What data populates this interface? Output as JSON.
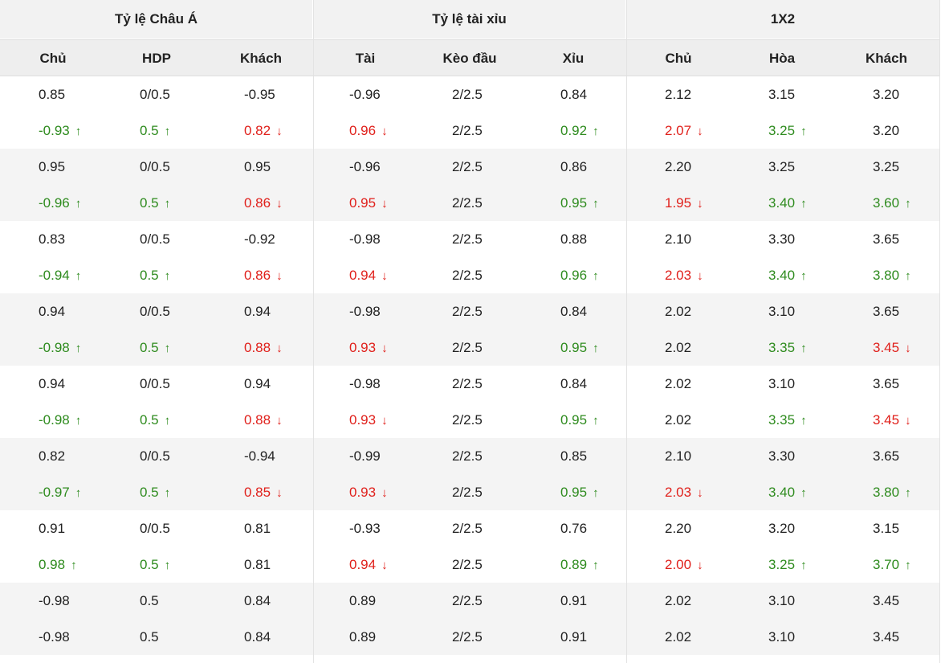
{
  "groups": [
    {
      "title": "Tỷ lệ Châu Á",
      "columns": [
        "Chủ",
        "HDP",
        "Khách"
      ]
    },
    {
      "title": "Tỷ lệ tài xỉu",
      "columns": [
        "Tài",
        "Kèo đầu",
        "Xỉu"
      ]
    },
    {
      "title": "1X2",
      "columns": [
        "Chủ",
        "Hòa",
        "Khách"
      ]
    }
  ],
  "colors": {
    "up": "#2e8b1e",
    "down": "#e0201b",
    "header_bg": "#f2f2f2",
    "alt_row_bg": "#f4f4f4"
  },
  "icons": {
    "up": "arrow-up-icon",
    "down": "arrow-down-icon"
  },
  "records": [
    {
      "open": [
        [
          "0.85"
        ],
        [
          "0/0.5"
        ],
        [
          "-0.95"
        ],
        [
          "-0.96"
        ],
        [
          "2/2.5"
        ],
        [
          "0.84"
        ],
        [
          "2.12"
        ],
        [
          "3.15"
        ],
        [
          "3.20"
        ]
      ],
      "live": [
        [
          "-0.93",
          "up"
        ],
        [
          "0.5",
          "up"
        ],
        [
          "0.82",
          "down"
        ],
        [
          "0.96",
          "down"
        ],
        [
          "2/2.5"
        ],
        [
          "0.92",
          "up"
        ],
        [
          "2.07",
          "down"
        ],
        [
          "3.25",
          "up"
        ],
        [
          "3.20"
        ]
      ]
    },
    {
      "open": [
        [
          "0.95"
        ],
        [
          "0/0.5"
        ],
        [
          "0.95"
        ],
        [
          "-0.96"
        ],
        [
          "2/2.5"
        ],
        [
          "0.86"
        ],
        [
          "2.20"
        ],
        [
          "3.25"
        ],
        [
          "3.25"
        ]
      ],
      "live": [
        [
          "-0.96",
          "up"
        ],
        [
          "0.5",
          "up"
        ],
        [
          "0.86",
          "down"
        ],
        [
          "0.95",
          "down"
        ],
        [
          "2/2.5"
        ],
        [
          "0.95",
          "up"
        ],
        [
          "1.95",
          "down"
        ],
        [
          "3.40",
          "up"
        ],
        [
          "3.60",
          "up"
        ]
      ]
    },
    {
      "open": [
        [
          "0.83"
        ],
        [
          "0/0.5"
        ],
        [
          "-0.92"
        ],
        [
          "-0.98"
        ],
        [
          "2/2.5"
        ],
        [
          "0.88"
        ],
        [
          "2.10"
        ],
        [
          "3.30"
        ],
        [
          "3.65"
        ]
      ],
      "live": [
        [
          "-0.94",
          "up"
        ],
        [
          "0.5",
          "up"
        ],
        [
          "0.86",
          "down"
        ],
        [
          "0.94",
          "down"
        ],
        [
          "2/2.5"
        ],
        [
          "0.96",
          "up"
        ],
        [
          "2.03",
          "down"
        ],
        [
          "3.40",
          "up"
        ],
        [
          "3.80",
          "up"
        ]
      ]
    },
    {
      "open": [
        [
          "0.94"
        ],
        [
          "0/0.5"
        ],
        [
          "0.94"
        ],
        [
          "-0.98"
        ],
        [
          "2/2.5"
        ],
        [
          "0.84"
        ],
        [
          "2.02"
        ],
        [
          "3.10"
        ],
        [
          "3.65"
        ]
      ],
      "live": [
        [
          "-0.98",
          "up"
        ],
        [
          "0.5",
          "up"
        ],
        [
          "0.88",
          "down"
        ],
        [
          "0.93",
          "down"
        ],
        [
          "2/2.5"
        ],
        [
          "0.95",
          "up"
        ],
        [
          "2.02"
        ],
        [
          "3.35",
          "up"
        ],
        [
          "3.45",
          "down"
        ]
      ]
    },
    {
      "open": [
        [
          "0.94"
        ],
        [
          "0/0.5"
        ],
        [
          "0.94"
        ],
        [
          "-0.98"
        ],
        [
          "2/2.5"
        ],
        [
          "0.84"
        ],
        [
          "2.02"
        ],
        [
          "3.10"
        ],
        [
          "3.65"
        ]
      ],
      "live": [
        [
          "-0.98",
          "up"
        ],
        [
          "0.5",
          "up"
        ],
        [
          "0.88",
          "down"
        ],
        [
          "0.93",
          "down"
        ],
        [
          "2/2.5"
        ],
        [
          "0.95",
          "up"
        ],
        [
          "2.02"
        ],
        [
          "3.35",
          "up"
        ],
        [
          "3.45",
          "down"
        ]
      ]
    },
    {
      "open": [
        [
          "0.82"
        ],
        [
          "0/0.5"
        ],
        [
          "-0.94"
        ],
        [
          "-0.99"
        ],
        [
          "2/2.5"
        ],
        [
          "0.85"
        ],
        [
          "2.10"
        ],
        [
          "3.30"
        ],
        [
          "3.65"
        ]
      ],
      "live": [
        [
          "-0.97",
          "up"
        ],
        [
          "0.5",
          "up"
        ],
        [
          "0.85",
          "down"
        ],
        [
          "0.93",
          "down"
        ],
        [
          "2/2.5"
        ],
        [
          "0.95",
          "up"
        ],
        [
          "2.03",
          "down"
        ],
        [
          "3.40",
          "up"
        ],
        [
          "3.80",
          "up"
        ]
      ]
    },
    {
      "open": [
        [
          "0.91"
        ],
        [
          "0/0.5"
        ],
        [
          "0.81"
        ],
        [
          "-0.93"
        ],
        [
          "2/2.5"
        ],
        [
          "0.76"
        ],
        [
          "2.20"
        ],
        [
          "3.20"
        ],
        [
          "3.15"
        ]
      ],
      "live": [
        [
          "0.98",
          "up"
        ],
        [
          "0.5",
          "up"
        ],
        [
          "0.81"
        ],
        [
          "0.94",
          "down"
        ],
        [
          "2/2.5"
        ],
        [
          "0.89",
          "up"
        ],
        [
          "2.00",
          "down"
        ],
        [
          "3.25",
          "up"
        ],
        [
          "3.70",
          "up"
        ]
      ]
    },
    {
      "open": [
        [
          "-0.98"
        ],
        [
          "0.5"
        ],
        [
          "0.84"
        ],
        [
          "0.89"
        ],
        [
          "2/2.5"
        ],
        [
          "0.91"
        ],
        [
          "2.02"
        ],
        [
          "3.10"
        ],
        [
          "3.45"
        ]
      ],
      "live": [
        [
          "-0.98"
        ],
        [
          "0.5"
        ],
        [
          "0.84"
        ],
        [
          "0.89"
        ],
        [
          "2/2.5"
        ],
        [
          "0.91"
        ],
        [
          "2.02"
        ],
        [
          "3.10"
        ],
        [
          "3.45"
        ]
      ]
    }
  ]
}
